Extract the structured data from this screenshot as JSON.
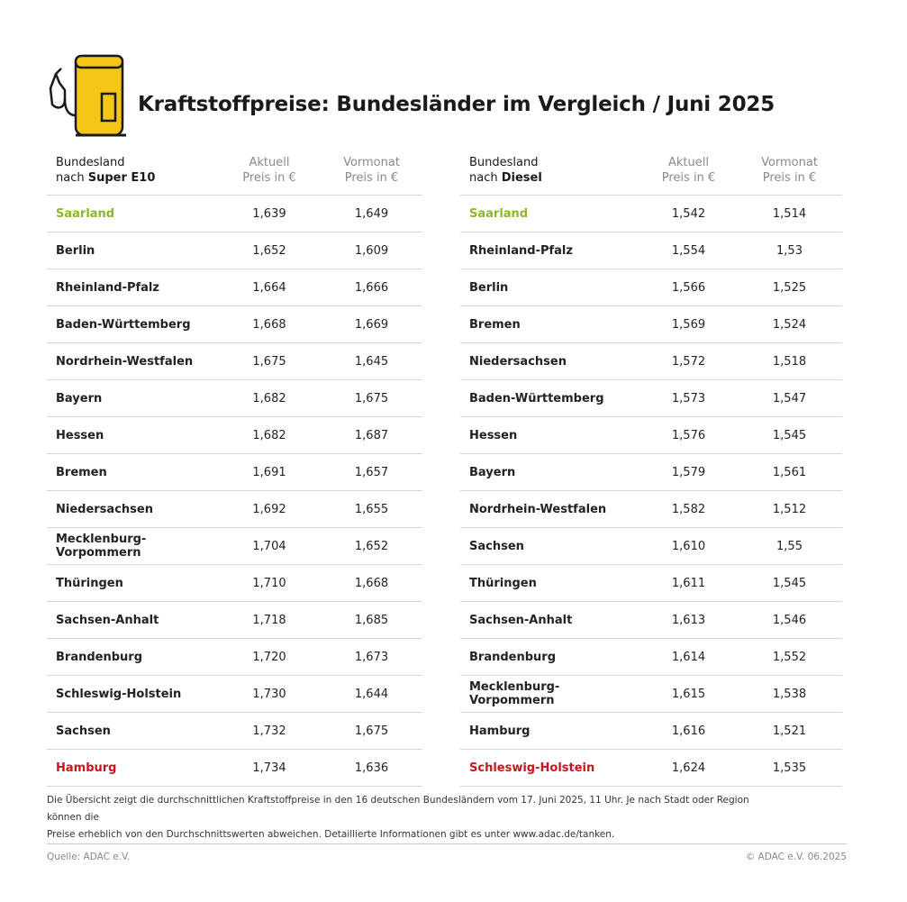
{
  "title": "Kraftstoffpreise: Bundesländer im Vergleich / Juni 2025",
  "icon": "fuel-pump-icon",
  "colors": {
    "accent": "#f5c518",
    "best": "#8fb52c",
    "worst": "#c8161d"
  },
  "e10": {
    "col_name_1": "Bundesland",
    "col_name_2_prefix": "nach ",
    "col_name_2_fuel": "Super E10",
    "col_current_1": "Aktuell",
    "col_current_2": "Preis in €",
    "col_prev_1": "Vormonat",
    "col_prev_2": "Preis in €",
    "rows": [
      {
        "name": "Saarland",
        "current": "1,639",
        "prev": "1,649"
      },
      {
        "name": "Berlin",
        "current": "1,652",
        "prev": "1,609"
      },
      {
        "name": "Rheinland-Pfalz",
        "current": "1,664",
        "prev": "1,666"
      },
      {
        "name": "Baden-Württemberg",
        "current": "1,668",
        "prev": "1,669"
      },
      {
        "name": "Nordrhein-Westfalen",
        "current": "1,675",
        "prev": "1,645"
      },
      {
        "name": "Bayern",
        "current": "1,682",
        "prev": "1,675"
      },
      {
        "name": "Hessen",
        "current": "1,682",
        "prev": "1,687"
      },
      {
        "name": "Bremen",
        "current": "1,691",
        "prev": "1,657"
      },
      {
        "name": "Niedersachsen",
        "current": "1,692",
        "prev": "1,655"
      },
      {
        "name": "Mecklenburg-Vorpommern",
        "current": "1,704",
        "prev": "1,652"
      },
      {
        "name": "Thüringen",
        "current": "1,710",
        "prev": "1,668"
      },
      {
        "name": "Sachsen-Anhalt",
        "current": "1,718",
        "prev": "1,685"
      },
      {
        "name": "Brandenburg",
        "current": "1,720",
        "prev": "1,673"
      },
      {
        "name": "Schleswig-Holstein",
        "current": "1,730",
        "prev": "1,644"
      },
      {
        "name": "Sachsen",
        "current": "1,732",
        "prev": "1,675"
      },
      {
        "name": "Hamburg",
        "current": "1,734",
        "prev": "1,636"
      }
    ]
  },
  "diesel": {
    "col_name_1": "Bundesland",
    "col_name_2_prefix": "nach ",
    "col_name_2_fuel": "Diesel",
    "col_current_1": "Aktuell",
    "col_current_2": "Preis in €",
    "col_prev_1": "Vormonat",
    "col_prev_2": "Preis in €",
    "rows": [
      {
        "name": "Saarland",
        "current": "1,542",
        "prev": "1,514"
      },
      {
        "name": "Rheinland-Pfalz",
        "current": "1,554",
        "prev": "1,53"
      },
      {
        "name": "Berlin",
        "current": "1,566",
        "prev": "1,525"
      },
      {
        "name": "Bremen",
        "current": "1,569",
        "prev": "1,524"
      },
      {
        "name": "Niedersachsen",
        "current": "1,572",
        "prev": "1,518"
      },
      {
        "name": "Baden-Württemberg",
        "current": "1,573",
        "prev": "1,547"
      },
      {
        "name": "Hessen",
        "current": "1,576",
        "prev": "1,545"
      },
      {
        "name": "Bayern",
        "current": "1,579",
        "prev": "1,561"
      },
      {
        "name": "Nordrhein-Westfalen",
        "current": "1,582",
        "prev": "1,512"
      },
      {
        "name": "Sachsen",
        "current": "1,610",
        "prev": "1,55"
      },
      {
        "name": "Thüringen",
        "current": "1,611",
        "prev": "1,545"
      },
      {
        "name": "Sachsen-Anhalt",
        "current": "1,613",
        "prev": "1,546"
      },
      {
        "name": "Brandenburg",
        "current": "1,614",
        "prev": "1,552"
      },
      {
        "name": "Mecklenburg-Vorpommern",
        "current": "1,615",
        "prev": "1,538"
      },
      {
        "name": "Hamburg",
        "current": "1,616",
        "prev": "1,521"
      },
      {
        "name": "Schleswig-Holstein",
        "current": "1,624",
        "prev": "1,535"
      }
    ]
  },
  "footnote_line1": "Die Übersicht zeigt die durchschnittlichen Kraftstoffpreise in den 16 deutschen Bundesländern vom 17. Juni 2025, 11 Uhr. Je nach Stadt oder Region können die",
  "footnote_line2": "Preise erheblich von den Durchschnittswerten abweichen. Detaillierte Informationen gibt es unter www.adac.de/tanken.",
  "source": "Quelle: ADAC e.V.",
  "copyright": "© ADAC e.V. 06.2025"
}
